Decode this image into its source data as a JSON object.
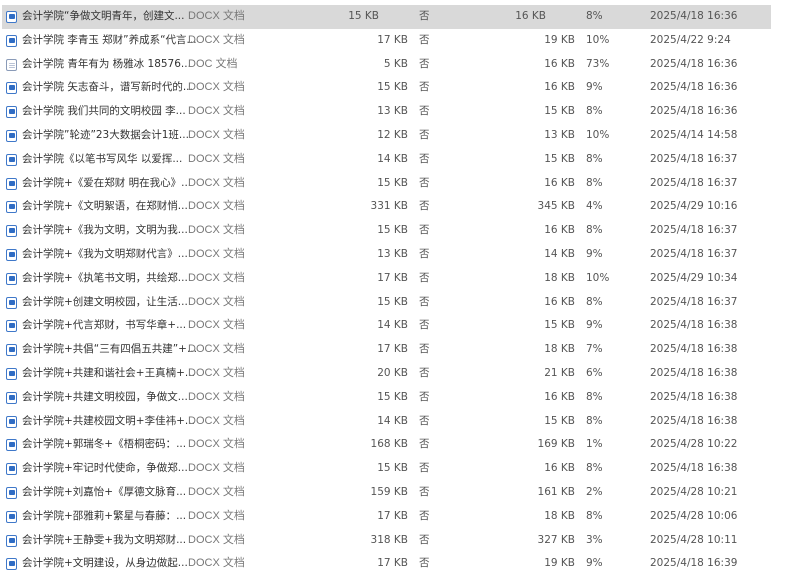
{
  "files": [
    {
      "name": "会计学院“争做文明青年，创建文...",
      "type": "DOCX 文档",
      "icon": "docx-icon",
      "size": "15 KB",
      "encrypted": "否",
      "packed": "16 KB",
      "ratio": "8%",
      "modified": "2025/4/18 16:36",
      "selected": true
    },
    {
      "name": "会计学院 李青玉 郑财”养成系“代言...",
      "type": "DOCX 文档",
      "icon": "docx-icon",
      "size": "17 KB",
      "encrypted": "否",
      "packed": "19 KB",
      "ratio": "10%",
      "modified": "2025/4/22 9:24"
    },
    {
      "name": "会计学院 青年有为 杨雅冰 18576...",
      "type": "DOC 文档",
      "icon": "doc-icon",
      "size": "5 KB",
      "encrypted": "否",
      "packed": "16 KB",
      "ratio": "73%",
      "modified": "2025/4/18 16:36"
    },
    {
      "name": "会计学院 矢志奋斗，谱写新时代的...",
      "type": "DOCX 文档",
      "icon": "docx-icon",
      "size": "15 KB",
      "encrypted": "否",
      "packed": "16 KB",
      "ratio": "9%",
      "modified": "2025/4/18 16:36"
    },
    {
      "name": "会计学院 我们共同的文明校园 李...",
      "type": "DOCX 文档",
      "icon": "docx-icon",
      "size": "13 KB",
      "encrypted": "否",
      "packed": "15 KB",
      "ratio": "8%",
      "modified": "2025/4/18 16:36"
    },
    {
      "name": "会计学院”轮迹”23大数据会计1班...",
      "type": "DOCX 文档",
      "icon": "docx-icon",
      "size": "12 KB",
      "encrypted": "否",
      "packed": "13 KB",
      "ratio": "10%",
      "modified": "2025/4/14 14:58"
    },
    {
      "name": "会计学院《以笔书写风华 以爱挥...",
      "type": "DOCX 文档",
      "icon": "docx-icon",
      "size": "14 KB",
      "encrypted": "否",
      "packed": "15 KB",
      "ratio": "8%",
      "modified": "2025/4/18 16:37"
    },
    {
      "name": "会计学院+《爱在郑财 明在我心》...",
      "type": "DOCX 文档",
      "icon": "docx-icon",
      "size": "15 KB",
      "encrypted": "否",
      "packed": "16 KB",
      "ratio": "8%",
      "modified": "2025/4/18 16:37"
    },
    {
      "name": "会计学院+《文明絮语，在郑财悄...",
      "type": "DOCX 文档",
      "icon": "docx-icon",
      "size": "331 KB",
      "encrypted": "否",
      "packed": "345 KB",
      "ratio": "4%",
      "modified": "2025/4/29 10:16"
    },
    {
      "name": "会计学院+《我为文明，文明为我...",
      "type": "DOCX 文档",
      "icon": "docx-icon",
      "size": "15 KB",
      "encrypted": "否",
      "packed": "16 KB",
      "ratio": "8%",
      "modified": "2025/4/18 16:37"
    },
    {
      "name": "会计学院+《我为文明郑财代言》...",
      "type": "DOCX 文档",
      "icon": "docx-icon",
      "size": "13 KB",
      "encrypted": "否",
      "packed": "14 KB",
      "ratio": "9%",
      "modified": "2025/4/18 16:37"
    },
    {
      "name": "会计学院+《执笔书文明，共绘郑...",
      "type": "DOCX 文档",
      "icon": "docx-icon",
      "size": "17 KB",
      "encrypted": "否",
      "packed": "18 KB",
      "ratio": "10%",
      "modified": "2025/4/29 10:34"
    },
    {
      "name": "会计学院+创建文明校园，让生活...",
      "type": "DOCX 文档",
      "icon": "docx-icon",
      "size": "15 KB",
      "encrypted": "否",
      "packed": "16 KB",
      "ratio": "8%",
      "modified": "2025/4/18 16:37"
    },
    {
      "name": "会计学院+代言郑财，书写华章+...",
      "type": "DOCX 文档",
      "icon": "docx-icon",
      "size": "14 KB",
      "encrypted": "否",
      "packed": "15 KB",
      "ratio": "9%",
      "modified": "2025/4/18 16:38"
    },
    {
      "name": "会计学院+共倡“三有四倡五共建”+...",
      "type": "DOCX 文档",
      "icon": "docx-icon",
      "size": "17 KB",
      "encrypted": "否",
      "packed": "18 KB",
      "ratio": "7%",
      "modified": "2025/4/18 16:38"
    },
    {
      "name": "会计学院+共建和谐社会+王真楠+...",
      "type": "DOCX 文档",
      "icon": "docx-icon",
      "size": "20 KB",
      "encrypted": "否",
      "packed": "21 KB",
      "ratio": "6%",
      "modified": "2025/4/18 16:38"
    },
    {
      "name": "会计学院+共建文明校园，争做文...",
      "type": "DOCX 文档",
      "icon": "docx-icon",
      "size": "15 KB",
      "encrypted": "否",
      "packed": "16 KB",
      "ratio": "8%",
      "modified": "2025/4/18 16:38"
    },
    {
      "name": "会计学院+共建校园文明+李佳祎+...",
      "type": "DOCX 文档",
      "icon": "docx-icon",
      "size": "14 KB",
      "encrypted": "否",
      "packed": "15 KB",
      "ratio": "8%",
      "modified": "2025/4/18 16:38"
    },
    {
      "name": "会计学院+郭瑞冬+《梧桐密码：...",
      "type": "DOCX 文档",
      "icon": "docx-icon",
      "size": "168 KB",
      "encrypted": "否",
      "packed": "169 KB",
      "ratio": "1%",
      "modified": "2025/4/28 10:22"
    },
    {
      "name": "会计学院+牢记时代使命，争做郑...",
      "type": "DOCX 文档",
      "icon": "docx-icon",
      "size": "15 KB",
      "encrypted": "否",
      "packed": "16 KB",
      "ratio": "8%",
      "modified": "2025/4/18 16:38"
    },
    {
      "name": "会计学院+刘嘉怡+《厚德文脉育...",
      "type": "DOCX 文档",
      "icon": "docx-icon",
      "size": "159 KB",
      "encrypted": "否",
      "packed": "161 KB",
      "ratio": "2%",
      "modified": "2025/4/28 10:21"
    },
    {
      "name": "会计学院+邵雅莉+繁星与春藤：...",
      "type": "DOCX 文档",
      "icon": "docx-icon",
      "size": "17 KB",
      "encrypted": "否",
      "packed": "18 KB",
      "ratio": "8%",
      "modified": "2025/4/28 10:06"
    },
    {
      "name": "会计学院+王静雯+我为文明郑财...",
      "type": "DOCX 文档",
      "icon": "docx-icon",
      "size": "318 KB",
      "encrypted": "否",
      "packed": "327 KB",
      "ratio": "3%",
      "modified": "2025/4/28 10:11"
    },
    {
      "name": "会计学院+文明建设，从身边做起...",
      "type": "DOCX 文档",
      "icon": "docx-icon",
      "size": "17 KB",
      "encrypted": "否",
      "packed": "19 KB",
      "ratio": "9%",
      "modified": "2025/4/18 16:39"
    }
  ],
  "colors": {
    "selected_row": "#d9d9d9",
    "docx_icon": "#2f6cc4",
    "text": "#555555"
  }
}
